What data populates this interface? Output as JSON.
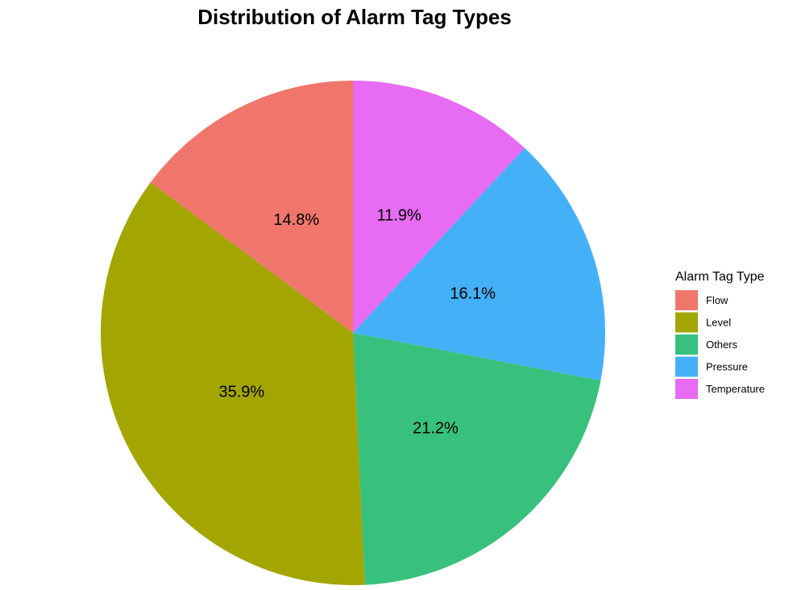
{
  "chart_data": {
    "type": "pie",
    "title": "Distribution of Alarm Tag Types",
    "legend_title": "Alarm Tag Type",
    "legend_position": "right",
    "start_angle_deg": 0,
    "direction": "clockwise",
    "slices": [
      {
        "label": "Temperature",
        "value": 11.9,
        "display": "11.9%",
        "color": "#E76BF3"
      },
      {
        "label": "Pressure",
        "value": 16.1,
        "display": "16.1%",
        "color": "#44B0F8"
      },
      {
        "label": "Others",
        "value": 21.2,
        "display": "21.2%",
        "color": "#38C17C"
      },
      {
        "label": "Level",
        "value": 35.9,
        "display": "35.9%",
        "color": "#A3A500"
      },
      {
        "label": "Flow",
        "value": 14.8,
        "display": "14.8%",
        "color": "#F0766C"
      }
    ],
    "legend_order": [
      "Flow",
      "Level",
      "Others",
      "Pressure",
      "Temperature"
    ]
  }
}
